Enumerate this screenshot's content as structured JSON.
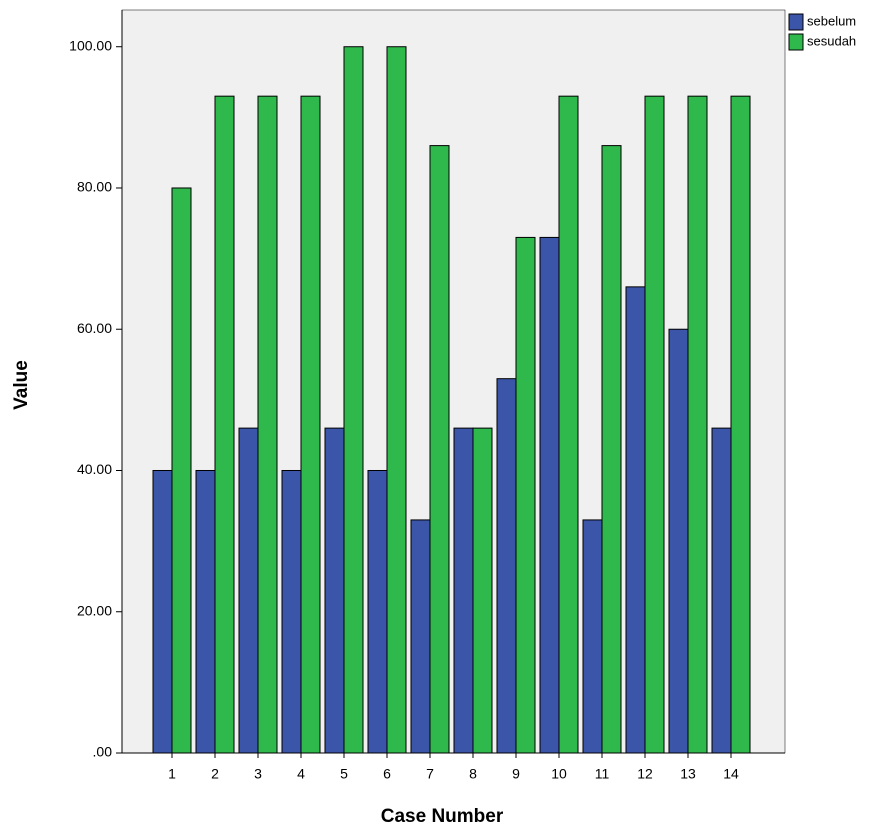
{
  "chart_data": {
    "type": "bar",
    "categories": [
      "1",
      "2",
      "3",
      "4",
      "5",
      "6",
      "7",
      "8",
      "9",
      "10",
      "11",
      "12",
      "13",
      "14"
    ],
    "series": [
      {
        "name": "sebelum",
        "color": "#3b55a8",
        "values": [
          40,
          40,
          46,
          40,
          46,
          40,
          33,
          46,
          53,
          73,
          33,
          66,
          60,
          46
        ]
      },
      {
        "name": "sesudah",
        "color": "#2fb84b",
        "values": [
          80,
          93,
          93,
          93,
          100,
          100,
          86,
          46,
          73,
          93,
          86,
          93,
          93,
          93
        ]
      }
    ],
    "x_label": "Case Number",
    "y_label": "Value",
    "ylim": [
      0,
      105.2
    ],
    "yticks": [
      {
        "value": 0,
        "label": ".00"
      },
      {
        "value": 20,
        "label": "20.00"
      },
      {
        "value": 40,
        "label": "40.00"
      },
      {
        "value": 60,
        "label": "60.00"
      },
      {
        "value": 80,
        "label": "80.00"
      },
      {
        "value": 100,
        "label": "100.00"
      }
    ],
    "legend": "top-right"
  }
}
